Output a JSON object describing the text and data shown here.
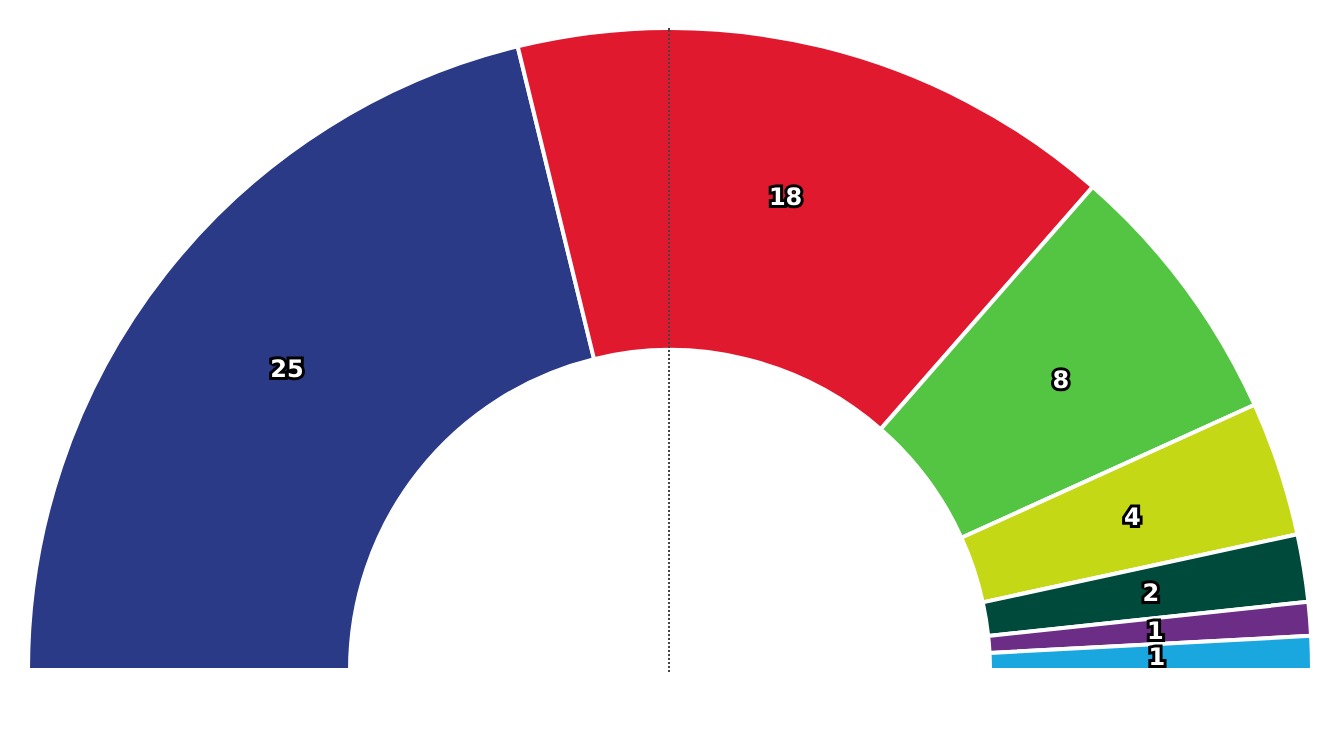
{
  "chart_data": {
    "type": "donut",
    "categories": [
      null,
      null,
      null,
      null,
      null,
      null,
      null
    ],
    "values": [
      25,
      18,
      8,
      4,
      2,
      1,
      1
    ],
    "colors": [
      "#2b3a87",
      "#e0192f",
      "#54c443",
      "#c4d816",
      "#004a3c",
      "#6b2d86",
      "#1aa7e0"
    ],
    "data_labels": true
  }
}
